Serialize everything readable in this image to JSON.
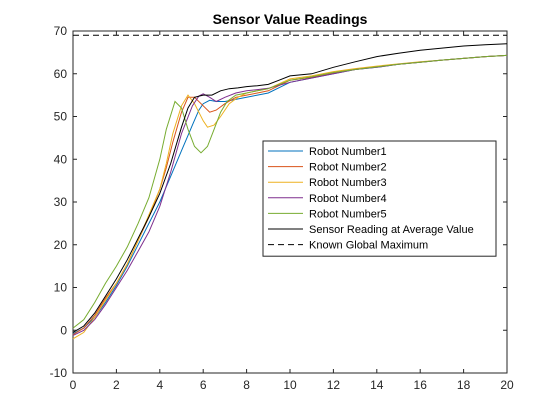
{
  "chart_data": {
    "type": "line",
    "title": "Sensor Value Readings",
    "xlabel": "",
    "ylabel": "",
    "xlim": [
      0,
      20
    ],
    "ylim": [
      -10,
      70
    ],
    "xticks": [
      0,
      2,
      4,
      6,
      8,
      10,
      12,
      14,
      16,
      18,
      20
    ],
    "yticks": [
      -10,
      0,
      10,
      20,
      30,
      40,
      50,
      60,
      70
    ],
    "grid": false,
    "legend_position": "center-right",
    "series": [
      {
        "name": "Robot Number1",
        "color": "#0072bd",
        "style": "solid",
        "x": [
          0,
          0.5,
          1,
          1.5,
          2,
          2.5,
          3,
          3.5,
          4,
          4.5,
          5,
          5.5,
          5.8,
          6,
          6.3,
          6.6,
          7,
          7.5,
          8,
          8.5,
          9,
          10,
          11,
          12,
          13,
          14,
          15,
          16,
          17,
          18,
          19,
          20
        ],
        "y": [
          -0.8,
          0.5,
          3,
          6.5,
          10.5,
          15,
          20,
          25,
          30,
          36,
          42,
          48,
          51.5,
          53,
          53.8,
          53.5,
          53.5,
          54,
          54.5,
          55,
          55.5,
          58,
          59,
          60,
          61,
          61.5,
          62.2,
          62.7,
          63.2,
          63.6,
          64,
          64.3
        ]
      },
      {
        "name": "Robot Number2",
        "color": "#d95319",
        "style": "solid",
        "x": [
          0,
          0.5,
          1,
          1.5,
          2,
          2.5,
          3,
          3.5,
          4,
          4.3,
          4.6,
          5,
          5.3,
          5.6,
          6,
          6.3,
          6.6,
          7,
          7.5,
          8,
          8.5,
          9,
          10,
          11,
          12,
          13,
          14,
          15,
          16,
          17,
          18,
          19,
          20
        ],
        "y": [
          -1,
          0.5,
          3.5,
          7.5,
          11,
          15.5,
          21,
          26.5,
          33,
          38,
          44,
          51,
          54.5,
          54.5,
          52.5,
          51,
          51.5,
          53,
          54.5,
          55,
          55.5,
          56,
          58.5,
          59.2,
          60.2,
          61,
          61.6,
          62.2,
          62.7,
          63.2,
          63.6,
          64,
          64.3
        ]
      },
      {
        "name": "Robot Number3",
        "color": "#edb120",
        "style": "solid",
        "x": [
          0,
          0.5,
          1,
          1.5,
          2,
          2.5,
          3,
          3.5,
          4,
          4.3,
          4.6,
          5,
          5.3,
          5.6,
          6,
          6.2,
          6.5,
          6.8,
          7.2,
          7.6,
          8,
          8.5,
          9,
          10,
          11,
          12,
          13,
          14,
          15,
          16,
          17,
          18,
          19,
          20
        ],
        "y": [
          -2,
          -0.5,
          3,
          7,
          11,
          15.5,
          21,
          27,
          33,
          39,
          46,
          52.5,
          55,
          53,
          49,
          47.5,
          48,
          50,
          53,
          54.5,
          55.5,
          56,
          56.5,
          58.8,
          59.5,
          60.5,
          61.2,
          61.8,
          62.3,
          62.8,
          63.2,
          63.6,
          64,
          64.3
        ]
      },
      {
        "name": "Robot Number4",
        "color": "#7e2f8e",
        "style": "solid",
        "x": [
          0,
          0.5,
          1,
          1.5,
          2,
          2.5,
          3,
          3.5,
          4,
          4.5,
          5,
          5.5,
          5.8,
          6,
          6.3,
          6.6,
          7,
          7.5,
          8,
          8.5,
          9,
          10,
          11,
          12,
          13,
          14,
          15,
          16,
          17,
          18,
          19,
          20
        ],
        "y": [
          -1.2,
          0,
          2.5,
          6,
          10,
          14,
          18.5,
          23,
          29,
          37,
          46,
          52.5,
          54.8,
          55.3,
          54.5,
          53.5,
          54.5,
          55.5,
          56,
          56.3,
          56.6,
          58,
          59,
          60,
          61,
          61.5,
          62.2,
          62.7,
          63.2,
          63.6,
          64,
          64.3
        ]
      },
      {
        "name": "Robot Number5",
        "color": "#77ac30",
        "style": "solid",
        "x": [
          0,
          0.5,
          1,
          1.5,
          2,
          2.5,
          3,
          3.5,
          4,
          4.3,
          4.7,
          5,
          5.3,
          5.6,
          5.9,
          6.2,
          6.5,
          6.8,
          7.1,
          7.5,
          8,
          8.5,
          9,
          10,
          11,
          12,
          13,
          14,
          15,
          16,
          17,
          18,
          19,
          20
        ],
        "y": [
          0.5,
          2.5,
          6.5,
          11,
          15,
          19.5,
          25,
          31,
          40,
          47,
          53.5,
          52,
          47,
          43,
          41.5,
          43,
          47,
          51,
          53.5,
          55,
          55.5,
          56,
          56.5,
          58.5,
          59.3,
          60.3,
          61,
          61.6,
          62.2,
          62.7,
          63.2,
          63.6,
          64,
          64.3
        ]
      },
      {
        "name": "Sensor Reading at Average Value",
        "color": "#000000",
        "style": "solid",
        "x": [
          0,
          0.5,
          1,
          1.5,
          2,
          2.5,
          3,
          3.5,
          4,
          4.5,
          5,
          5.3,
          5.6,
          6,
          6.4,
          6.8,
          7.2,
          7.6,
          8,
          8.5,
          9,
          9.5,
          10,
          11,
          12,
          13,
          14,
          15,
          16,
          17,
          18,
          19,
          20
        ],
        "y": [
          -0.5,
          1,
          4,
          8,
          12,
          16.5,
          21.5,
          26.5,
          32,
          39,
          47.5,
          52,
          54.5,
          55,
          55,
          56,
          56.5,
          56.7,
          57,
          57.2,
          57.5,
          58.5,
          59.5,
          60,
          61.5,
          62.8,
          64,
          64.8,
          65.5,
          66,
          66.5,
          66.8,
          67
        ]
      },
      {
        "name": "Known Global Maximum",
        "color": "#000000",
        "style": "dashed",
        "x": [
          0,
          20
        ],
        "y": [
          69,
          69
        ]
      }
    ]
  }
}
